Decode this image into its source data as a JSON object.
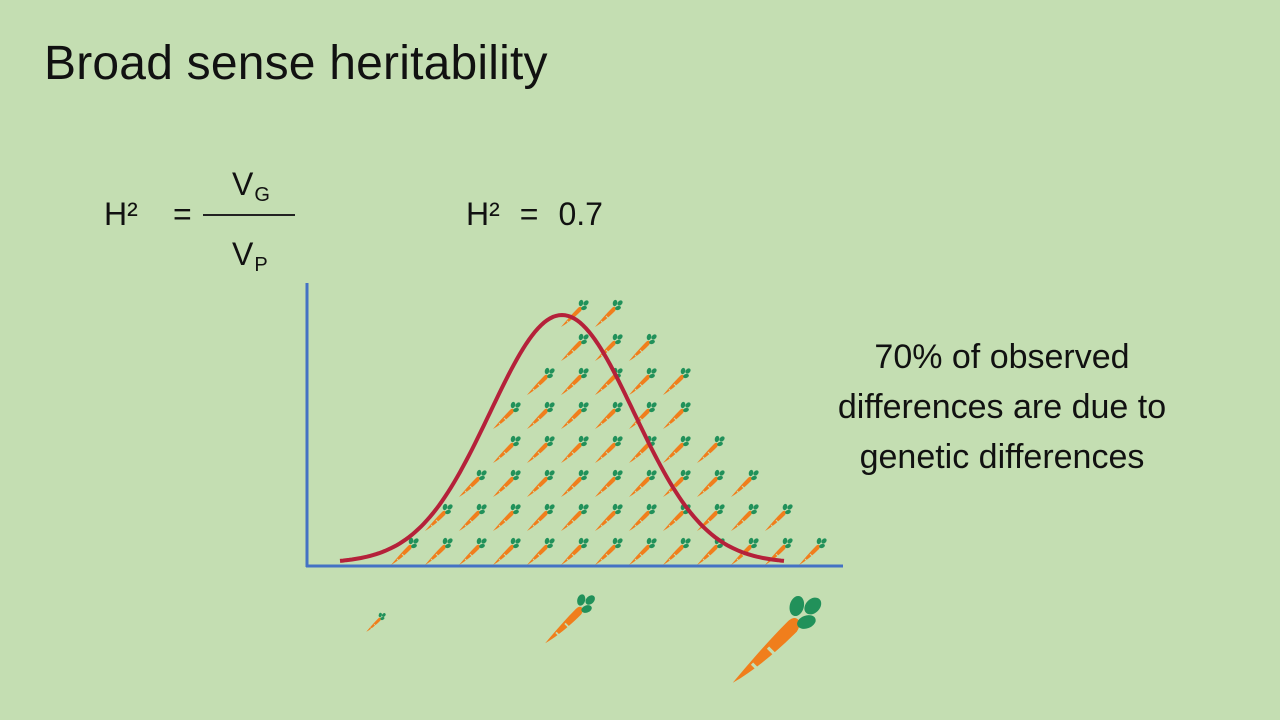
{
  "title": "Broad sense heritability",
  "formula": {
    "lhs": "H²",
    "equals": "=",
    "numerator": "V",
    "numerator_sub": "G",
    "denominator": "V",
    "denominator_sub": "P"
  },
  "value": {
    "lhs": "H²",
    "equals": "=",
    "number": "0.7"
  },
  "caption": [
    "70% of observed",
    "differences are due to",
    "genetic differences"
  ],
  "colors": {
    "background": "#c4deb2",
    "axis": "#4472c4",
    "curve": "#b5213a",
    "carrot_body": "#f07e1c",
    "carrot_leaf": "#21915a"
  },
  "icons": {
    "carrot": "carrot-icon",
    "small_carrot_legend": "small-carrot-icon",
    "medium_carrot_legend": "medium-carrot-icon",
    "large_carrot_legend": "large-carrot-icon"
  },
  "chart_data": {
    "type": "histogram",
    "title": "",
    "xlabel": "",
    "ylabel": "",
    "column_counts": [
      1,
      2,
      3,
      5,
      6,
      8,
      8,
      7,
      6,
      4,
      3,
      2,
      1
    ],
    "curve": "normal-distribution"
  }
}
